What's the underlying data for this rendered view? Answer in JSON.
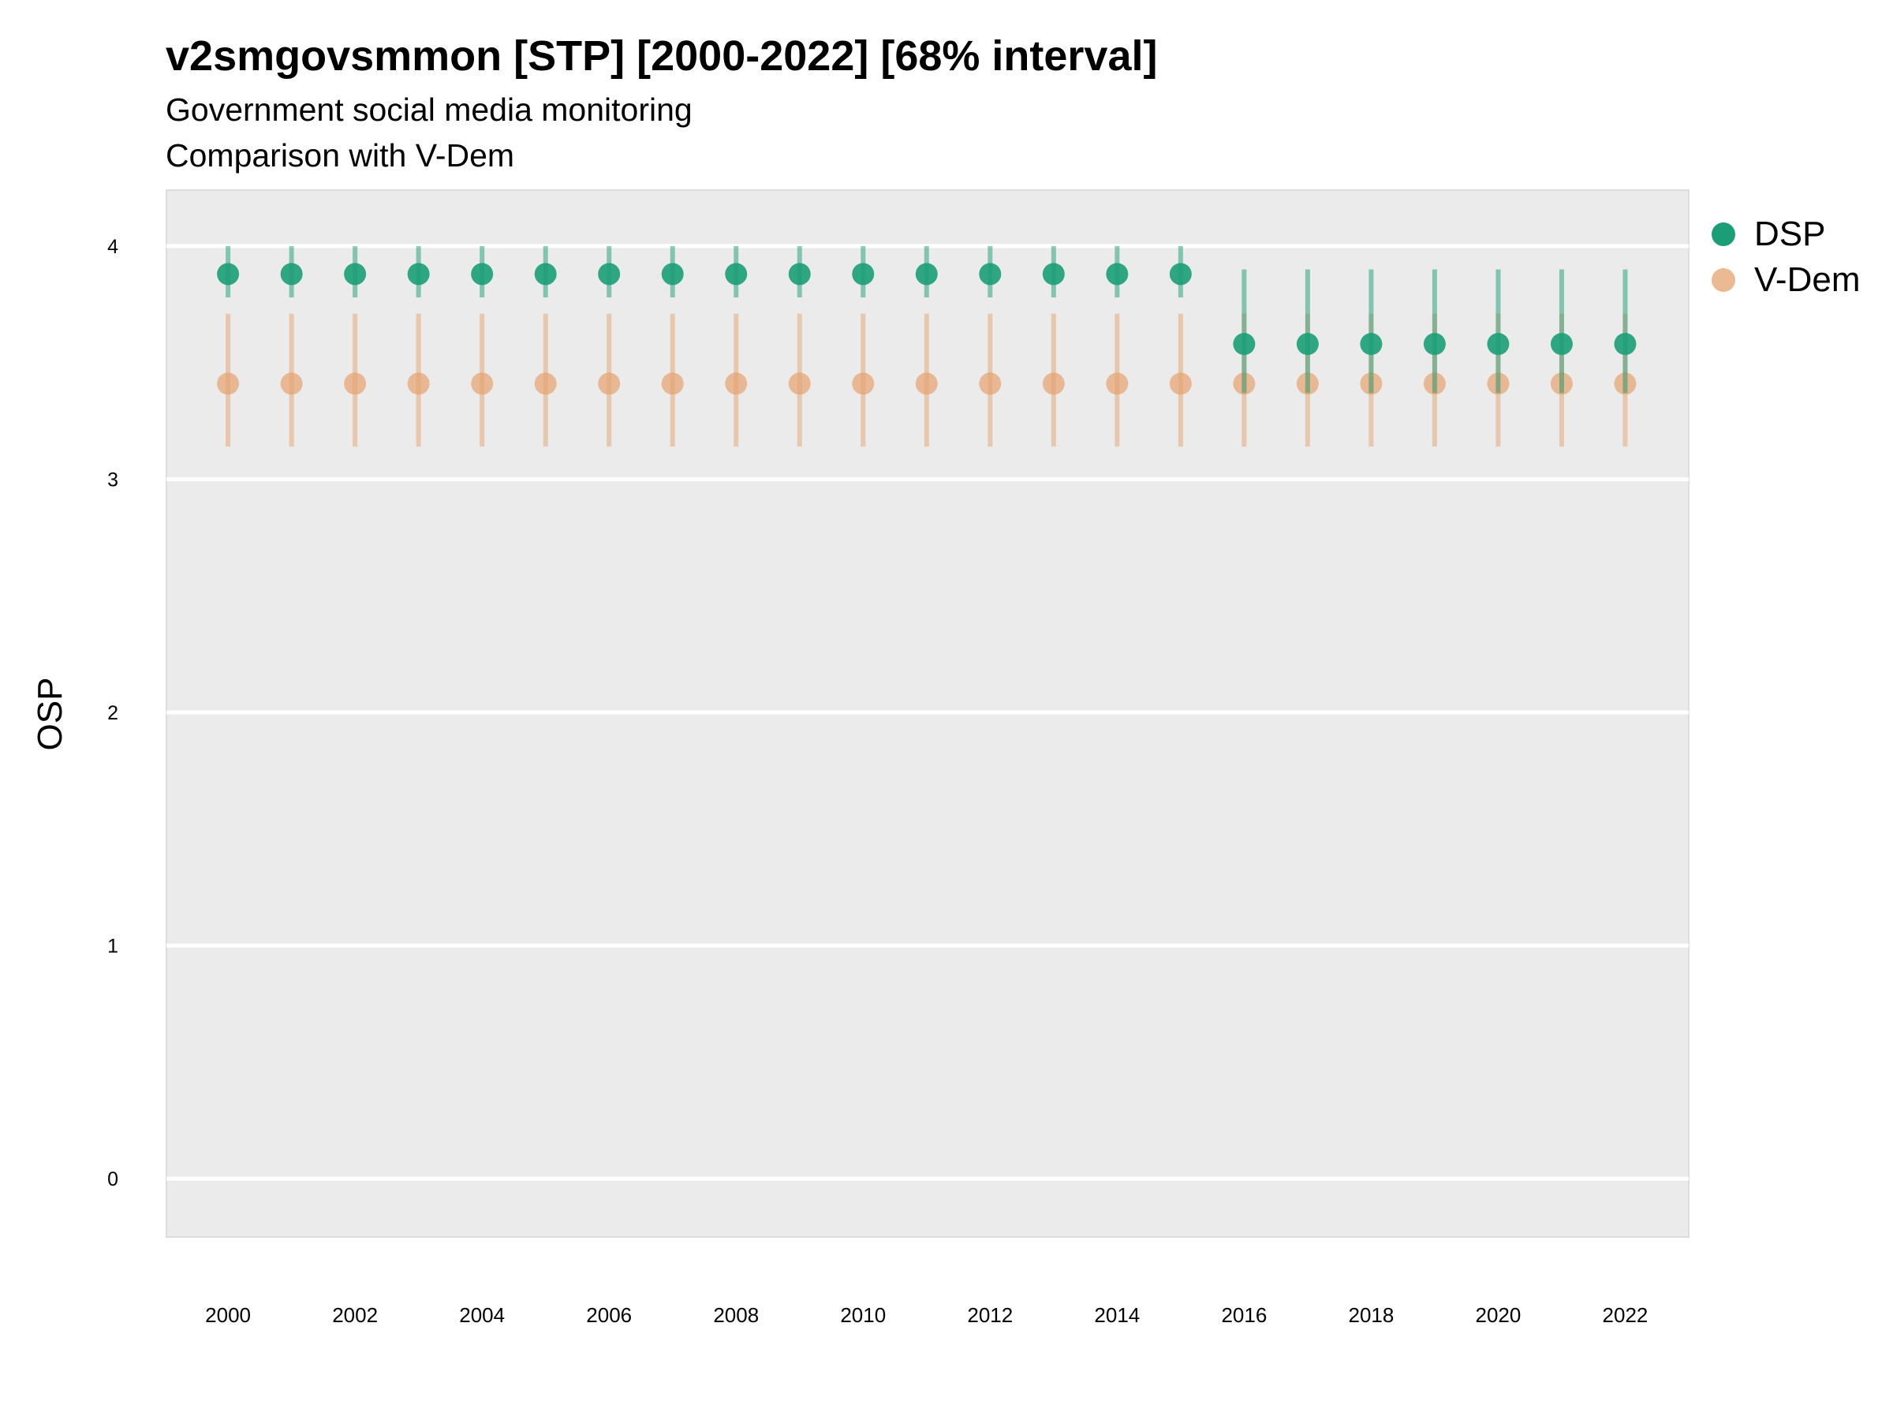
{
  "chart_data": {
    "type": "scatter",
    "title": "v2smgovsmmon [STP] [2000-2022] [68% interval]",
    "subtitle_lines": [
      "Government social media monitoring",
      "Comparison with V-Dem"
    ],
    "xlabel": "",
    "ylabel": "OSP",
    "x": [
      2000,
      2001,
      2002,
      2003,
      2004,
      2005,
      2006,
      2007,
      2008,
      2009,
      2010,
      2011,
      2012,
      2013,
      2014,
      2015,
      2016,
      2017,
      2018,
      2019,
      2020,
      2021,
      2022
    ],
    "x_tick_labels": [
      "2000",
      "2002",
      "2004",
      "2006",
      "2008",
      "2010",
      "2012",
      "2014",
      "2016",
      "2018",
      "2020",
      "2022"
    ],
    "y_ticks": [
      "0",
      "1",
      "2",
      "3",
      "4"
    ],
    "xlim": [
      1999.03,
      2023.0
    ],
    "ylim": [
      -0.25,
      4.24
    ],
    "grid": true,
    "legend_position": "right",
    "series": [
      {
        "name": "DSP",
        "color": "#1b9e77",
        "values": [
          3.88,
          3.88,
          3.88,
          3.88,
          3.88,
          3.88,
          3.88,
          3.88,
          3.88,
          3.88,
          3.88,
          3.88,
          3.88,
          3.88,
          3.88,
          3.88,
          3.58,
          3.58,
          3.58,
          3.58,
          3.58,
          3.58,
          3.58
        ],
        "lower": [
          3.78,
          3.78,
          3.78,
          3.78,
          3.78,
          3.78,
          3.78,
          3.78,
          3.78,
          3.78,
          3.78,
          3.78,
          3.78,
          3.78,
          3.78,
          3.78,
          3.37,
          3.37,
          3.37,
          3.37,
          3.37,
          3.37,
          3.37
        ],
        "upper": [
          4.0,
          4.0,
          4.0,
          4.0,
          4.0,
          4.0,
          4.0,
          4.0,
          4.0,
          4.0,
          4.0,
          4.0,
          4.0,
          4.0,
          4.0,
          4.0,
          3.9,
          3.9,
          3.9,
          3.9,
          3.9,
          3.9,
          3.9
        ]
      },
      {
        "name": "V-Dem",
        "color": "#e6a36e",
        "values": [
          3.41,
          3.41,
          3.41,
          3.41,
          3.41,
          3.41,
          3.41,
          3.41,
          3.41,
          3.41,
          3.41,
          3.41,
          3.41,
          3.41,
          3.41,
          3.41,
          3.41,
          3.41,
          3.41,
          3.41,
          3.41,
          3.41,
          3.41
        ],
        "lower": [
          3.14,
          3.14,
          3.14,
          3.14,
          3.14,
          3.14,
          3.14,
          3.14,
          3.14,
          3.14,
          3.14,
          3.14,
          3.14,
          3.14,
          3.14,
          3.14,
          3.14,
          3.14,
          3.14,
          3.14,
          3.14,
          3.14,
          3.14
        ],
        "upper": [
          3.71,
          3.71,
          3.71,
          3.71,
          3.71,
          3.71,
          3.71,
          3.71,
          3.71,
          3.71,
          3.71,
          3.71,
          3.71,
          3.71,
          3.71,
          3.71,
          3.71,
          3.71,
          3.71,
          3.71,
          3.71,
          3.71,
          3.71
        ]
      }
    ]
  }
}
